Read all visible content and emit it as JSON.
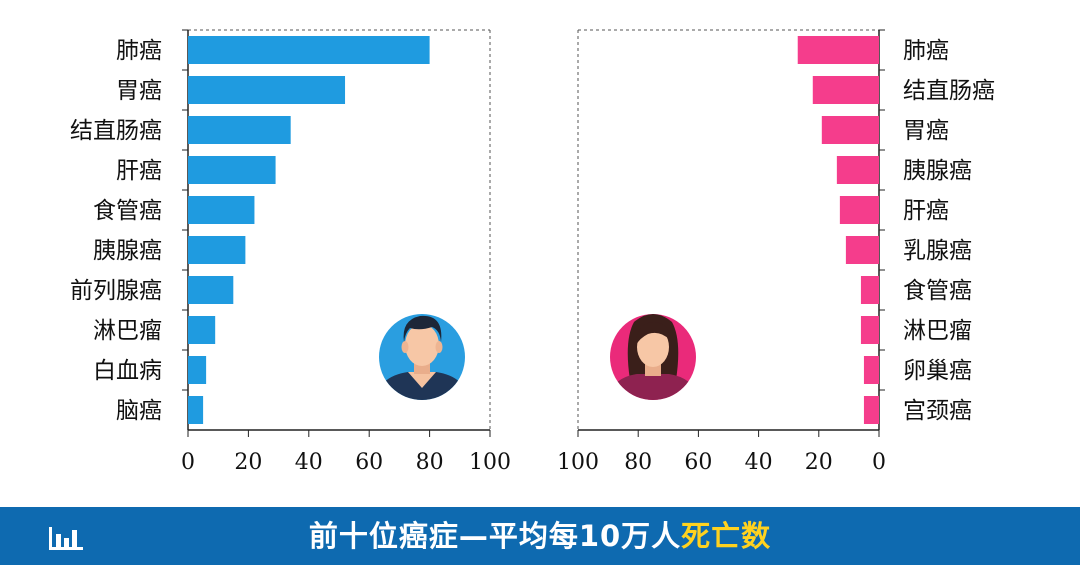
{
  "chart_data": [
    {
      "type": "bar",
      "orientation": "horizontal",
      "categories": [
        "肺癌",
        "胃癌",
        "结直肠癌",
        "肝癌",
        "食管癌",
        "胰腺癌",
        "前列腺癌",
        "淋巴瘤",
        "白血病",
        "脑癌"
      ],
      "values": [
        80,
        52,
        34,
        29,
        22,
        19,
        15,
        9,
        6,
        5
      ],
      "xlim": [
        0,
        100
      ],
      "xticks": [
        "0",
        "20",
        "40",
        "60",
        "80",
        "100"
      ],
      "grid": false,
      "icon": "male-avatar-icon",
      "bar_color": "#1f9be0"
    },
    {
      "type": "bar",
      "orientation": "horizontal",
      "reversed_x": true,
      "categories": [
        "肺癌",
        "结直肠癌",
        "胃癌",
        "胰腺癌",
        "肝癌",
        "乳腺癌",
        "食管癌",
        "淋巴瘤",
        "卵巢癌",
        "宫颈癌"
      ],
      "values": [
        27,
        22,
        19,
        14,
        13,
        11,
        6,
        6,
        5,
        5
      ],
      "xlim": [
        0,
        100
      ],
      "xticks": [
        "100",
        "80",
        "60",
        "40",
        "20",
        "0"
      ],
      "grid": false,
      "icon": "female-avatar-icon",
      "bar_color": "#f53d8c"
    }
  ],
  "banner": {
    "title_main": "前十位癌症—平均每10万人",
    "title_highlight": "死亡数",
    "icon": "bar-chart-icon",
    "background": "#0e6ab0",
    "highlight_color": "#ffd21f"
  }
}
